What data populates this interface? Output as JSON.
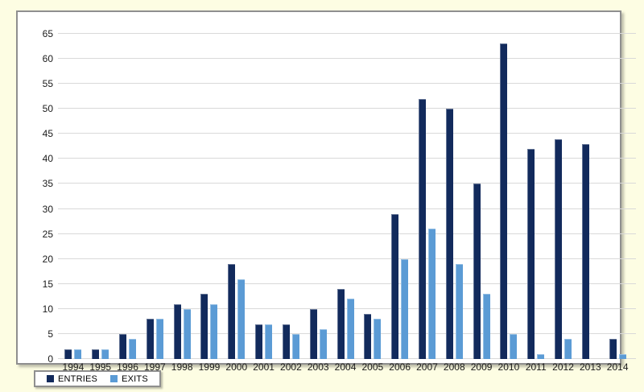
{
  "chart_data": {
    "type": "bar",
    "title": "",
    "xlabel": "",
    "ylabel": "",
    "categories": [
      "1994",
      "1995",
      "1996",
      "1997",
      "1998",
      "1999",
      "2000",
      "2001",
      "2002",
      "2003",
      "2004",
      "2005",
      "2006",
      "2007",
      "2008",
      "2009",
      "2010",
      "2011",
      "2012",
      "2013",
      "2014"
    ],
    "series": [
      {
        "name": "ENTRIES",
        "color": "#122A5C",
        "values": [
          2,
          2,
          5,
          8,
          11,
          13,
          19,
          7,
          7,
          10,
          14,
          9,
          29,
          52,
          50,
          35,
          63,
          42,
          44,
          43,
          4
        ]
      },
      {
        "name": "EXITS",
        "color": "#5B9BD5",
        "values": [
          2,
          2,
          4,
          8,
          10,
          11,
          16,
          7,
          5,
          6,
          12,
          8,
          20,
          26,
          19,
          13,
          5,
          1,
          4,
          0,
          1
        ]
      }
    ],
    "ylim": [
      0,
      65
    ],
    "ytick_step": 5,
    "grid": true,
    "legend_position": "bottom-left"
  },
  "colors": {
    "page_background": "#FDFDE3",
    "plot_background": "#FFFFFF",
    "gridline": "#D9D9D9",
    "frame_border": "#8F8F8F",
    "entries_bar": "#122A5C",
    "exits_bar": "#5B9BD5"
  }
}
